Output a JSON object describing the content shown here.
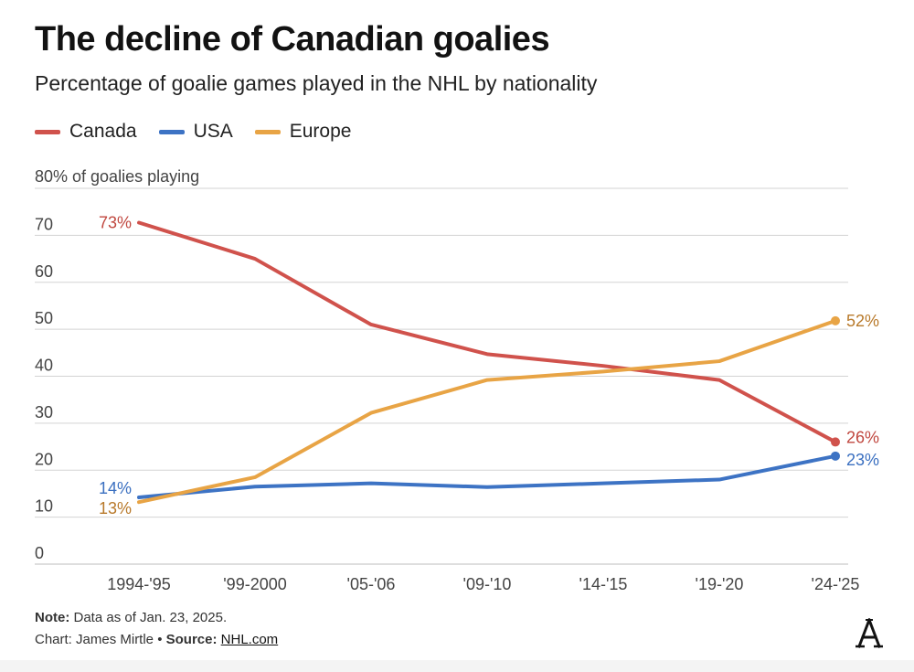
{
  "header": {
    "title": "The decline of Canadian goalies",
    "subtitle": "Percentage of goalie games played in the NHL by nationality"
  },
  "legend": [
    {
      "label": "Canada",
      "color": "#d0524c"
    },
    {
      "label": "USA",
      "color": "#3d73c4"
    },
    {
      "label": "Europe",
      "color": "#e8a445"
    }
  ],
  "chart_data": {
    "type": "line",
    "title": "The decline of Canadian goalies",
    "subtitle": "Percentage of goalie games played in the NHL by nationality",
    "ylabel": "80% of goalies playing",
    "xlabel": "",
    "ylim": [
      0,
      80
    ],
    "yticks": [
      0,
      10,
      20,
      30,
      40,
      50,
      60,
      70
    ],
    "ytick_labels": [
      "0",
      "10",
      "20",
      "30",
      "40",
      "50",
      "60",
      "70"
    ],
    "top_tick_label": "80% of goalies playing",
    "grid": true,
    "categories": [
      "1994-'95",
      "'99-2000",
      "'05-'06",
      "'09-'10",
      "'14-'15",
      "'19-'20",
      "'24-'25"
    ],
    "series": [
      {
        "name": "Canada",
        "color": "#d0524c",
        "label_color": "#c0473f",
        "values": [
          72.7,
          65,
          51,
          44.7,
          42.2,
          39.2,
          26
        ],
        "start_label": "73%",
        "end_label": "26%"
      },
      {
        "name": "USA",
        "color": "#3d73c4",
        "label_color": "#3a6fc0",
        "values": [
          14.2,
          16.5,
          17.2,
          16.4,
          17.2,
          18,
          23
        ],
        "start_label": "14%",
        "end_label": "23%"
      },
      {
        "name": "Europe",
        "color": "#e8a445",
        "label_color": "#b8792a",
        "values": [
          13.2,
          18.5,
          32.2,
          39.2,
          41,
          43.2,
          51.8
        ],
        "start_label": "13%",
        "end_label": "52%"
      }
    ]
  },
  "footer": {
    "note_label": "Note:",
    "note_text": " Data as of Jan. 23, 2025.",
    "chart_credit": "Chart: James Mirtle • ",
    "source_label": "Source:",
    "source_link": "NHL.com"
  }
}
